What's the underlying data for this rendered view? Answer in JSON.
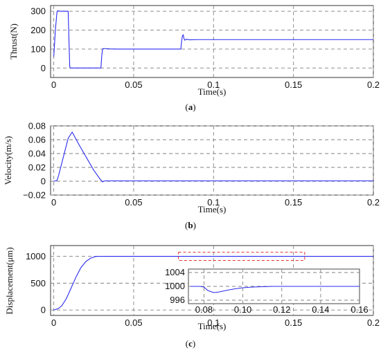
{
  "figure": {
    "captions": [
      "(a)",
      "(b)",
      "(c)"
    ]
  },
  "chart_data": [
    {
      "type": "line",
      "id": "thrust",
      "caption": "(a)",
      "xlabel": "Time(s)",
      "ylabel": "Thrust(N)",
      "xlim": [
        -0.002,
        0.2
      ],
      "ylim": [
        -50,
        330
      ],
      "xticks": [
        0,
        0.05,
        0.1,
        0.15,
        0.2
      ],
      "xticklabels": [
        "0",
        "0.05",
        "0.1",
        "0.15",
        "0.2"
      ],
      "yticks": [
        0,
        100,
        200,
        300
      ],
      "yticklabels": [
        "0",
        "100",
        "200",
        "300"
      ],
      "grid": true,
      "x": [
        0,
        0.001,
        0.002,
        0.0025,
        0.003,
        0.004,
        0.006,
        0.008,
        0.009,
        0.0095,
        0.01,
        0.0105,
        0.011,
        0.015,
        0.02,
        0.025,
        0.0285,
        0.0295,
        0.03,
        0.0305,
        0.031,
        0.035,
        0.04,
        0.05,
        0.06,
        0.07,
        0.075,
        0.079,
        0.0795,
        0.08,
        0.0805,
        0.081,
        0.0815,
        0.082,
        0.083,
        0.085,
        0.09,
        0.1,
        0.12,
        0.15,
        0.18,
        0.2
      ],
      "y": [
        60,
        200,
        295,
        303,
        301,
        300,
        300,
        300,
        300,
        150,
        5,
        0,
        0,
        0,
        0,
        0,
        0,
        0,
        60,
        100,
        103,
        101,
        100,
        100,
        100,
        100,
        100,
        100,
        100,
        140,
        170,
        175,
        155,
        147,
        152,
        149,
        150,
        150,
        150,
        150,
        150,
        150
      ]
    },
    {
      "type": "line",
      "id": "velocity",
      "caption": "(b)",
      "xlabel": "Time(s)",
      "ylabel": "Velocity(m/s)",
      "xlim": [
        -0.002,
        0.2
      ],
      "ylim": [
        -0.02,
        0.08
      ],
      "xticks": [
        0,
        0.05,
        0.1,
        0.15,
        0.2
      ],
      "xticklabels": [
        "0",
        "0.05",
        "0.1",
        "0.15",
        "0.2"
      ],
      "yticks": [
        -0.02,
        0,
        0.02,
        0.04,
        0.06,
        0.08
      ],
      "yticklabels": [
        "−0.02",
        "0",
        "0.02",
        "0.04",
        "0.06",
        "0.08"
      ],
      "grid": true,
      "x": [
        0,
        0.002,
        0.003,
        0.006,
        0.009,
        0.0115,
        0.012,
        0.016,
        0.02,
        0.025,
        0.029,
        0.0305,
        0.032,
        0.05,
        0.1,
        0.15,
        0.2
      ],
      "y": [
        0,
        0.001,
        0.008,
        0.035,
        0.062,
        0.071,
        0.069,
        0.052,
        0.036,
        0.016,
        0.003,
        -0.001,
        0.0005,
        0.0005,
        0.0005,
        0.0005,
        0.0005
      ]
    },
    {
      "type": "line",
      "id": "displacement",
      "caption": "(c)",
      "xlabel": "Time(s)",
      "ylabel": "Displacement(μm)",
      "xlim": [
        -0.002,
        0.2
      ],
      "ylim": [
        -100,
        1200
      ],
      "xticks": [
        0,
        0.05,
        0.1,
        0.15,
        0.2
      ],
      "xticklabels": [
        "0",
        "0.05",
        "0.1",
        "0.15",
        "0.2"
      ],
      "yticks": [
        0,
        500,
        1000
      ],
      "yticklabels": [
        "0",
        "500",
        "1000"
      ],
      "grid": true,
      "x": [
        0,
        0.003,
        0.005,
        0.008,
        0.011,
        0.014,
        0.017,
        0.02,
        0.023,
        0.026,
        0.028,
        0.03,
        0.06,
        0.1,
        0.15,
        0.2
      ],
      "y": [
        0,
        30,
        80,
        220,
        420,
        620,
        790,
        900,
        965,
        995,
        1000,
        1000,
        1000,
        1000,
        1000,
        1000
      ],
      "zoom_region": {
        "x": [
          0.078,
          0.157
        ],
        "y": [
          924,
          1076
        ]
      },
      "inset": {
        "xlim": [
          0.072,
          0.16
        ],
        "ylim": [
          995,
          1005
        ],
        "xticks": [
          0.08,
          0.1,
          0.12,
          0.14,
          0.16
        ],
        "xticklabels": [
          "0.08",
          "0.10",
          "0.12",
          "0.14",
          "0.16"
        ],
        "yticks": [
          996,
          1000,
          1004
        ],
        "yticklabels": [
          "996",
          "1000",
          "1004"
        ],
        "grid": true,
        "x": [
          0.073,
          0.078,
          0.08,
          0.082,
          0.085,
          0.088,
          0.092,
          0.096,
          0.1,
          0.105,
          0.11,
          0.115,
          0.12,
          0.13,
          0.14,
          0.15,
          0.16
        ],
        "y": [
          1000,
          1000,
          999.8,
          998.8,
          998.2,
          998.4,
          998.9,
          999.3,
          999.6,
          999.8,
          999.9,
          1000,
          1000,
          1000,
          1000,
          1000,
          1000
        ]
      }
    }
  ]
}
